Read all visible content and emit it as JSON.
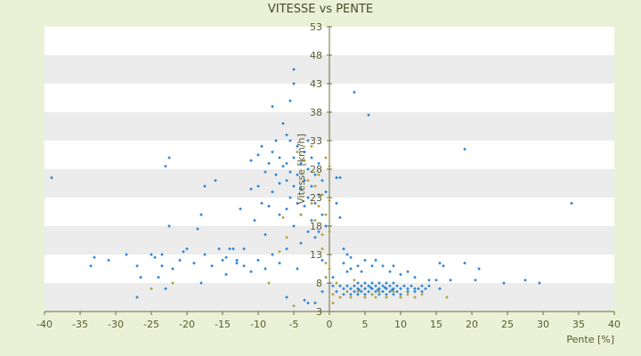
{
  "chart_data": {
    "type": "scatter",
    "title": "VITESSE vs PENTE",
    "xlabel": "Pente [%]",
    "ylabel": "Vitesse [km/h]",
    "xlim": [
      -40,
      40
    ],
    "ylim": [
      3,
      53
    ],
    "x_ticks": [
      -40,
      -35,
      -30,
      -25,
      -20,
      -15,
      -10,
      -5,
      0,
      5,
      10,
      15,
      20,
      25,
      30,
      35,
      40
    ],
    "y_ticks": [
      3,
      8,
      13,
      18,
      23,
      28,
      33,
      38,
      43,
      48,
      53
    ],
    "grid": "alternating horizontal bands",
    "legend": "none",
    "colors": {
      "primary": "#2e86d4",
      "secondary": "#b5a23a",
      "background": "#ebf1d6"
    },
    "series": [
      {
        "color": "#2e86d4",
        "points": [
          [
            -39,
            26.5
          ],
          [
            -33.5,
            11
          ],
          [
            -33,
            12.5
          ],
          [
            -31,
            12
          ],
          [
            -28.5,
            13
          ],
          [
            -27,
            11
          ],
          [
            -27,
            5.5
          ],
          [
            -26.5,
            9
          ],
          [
            -25,
            13
          ],
          [
            -24.5,
            12.5
          ],
          [
            -24,
            9
          ],
          [
            -23.5,
            11
          ],
          [
            -23.5,
            13
          ],
          [
            -23,
            28.5
          ],
          [
            -22.5,
            30
          ],
          [
            -22.5,
            18
          ],
          [
            -22,
            10.5
          ],
          [
            -21,
            12
          ],
          [
            -20.5,
            13.5
          ],
          [
            -20,
            14
          ],
          [
            -19,
            11.5
          ],
          [
            -18.5,
            17.5
          ],
          [
            -18,
            20
          ],
          [
            -18,
            8
          ],
          [
            -17.5,
            13
          ],
          [
            -17.5,
            25
          ],
          [
            -16.5,
            11
          ],
          [
            -16,
            26
          ],
          [
            -15.5,
            14
          ],
          [
            -15,
            12
          ],
          [
            -14.5,
            12.5
          ],
          [
            -14,
            14
          ],
          [
            -13.5,
            14
          ],
          [
            -13,
            12
          ],
          [
            -12.5,
            21
          ],
          [
            -12,
            14
          ],
          [
            -12,
            11
          ],
          [
            -11,
            29.5
          ],
          [
            -11,
            24.5
          ],
          [
            -10.5,
            19
          ],
          [
            -10,
            30.5
          ],
          [
            -10,
            25
          ],
          [
            -9.5,
            32
          ],
          [
            -9.5,
            22
          ],
          [
            -9,
            27.5
          ],
          [
            -9,
            16.5
          ],
          [
            -8.5,
            29
          ],
          [
            -8.5,
            21.5
          ],
          [
            -8,
            39
          ],
          [
            -8,
            31
          ],
          [
            -8,
            24
          ],
          [
            -7.5,
            33
          ],
          [
            -7.5,
            27
          ],
          [
            -7,
            30
          ],
          [
            -7,
            25.5
          ],
          [
            -7,
            20
          ],
          [
            -6.5,
            36
          ],
          [
            -6.5,
            28.5
          ],
          [
            -6,
            34
          ],
          [
            -6,
            29
          ],
          [
            -6,
            26
          ],
          [
            -6,
            21
          ],
          [
            -6,
            14
          ],
          [
            -5.5,
            40
          ],
          [
            -5.5,
            33
          ],
          [
            -5.5,
            27.5
          ],
          [
            -5.5,
            23
          ],
          [
            -5,
            45.5
          ],
          [
            -5,
            43
          ],
          [
            -5,
            30
          ],
          [
            -5,
            25
          ],
          [
            -5,
            18
          ],
          [
            -4.5,
            32
          ],
          [
            -4.5,
            27
          ],
          [
            -4.5,
            22
          ],
          [
            -4.5,
            10.5
          ],
          [
            -4,
            29
          ],
          [
            -4,
            24.5
          ],
          [
            -4,
            20
          ],
          [
            -4,
            15
          ],
          [
            -3.5,
            31
          ],
          [
            -3.5,
            26
          ],
          [
            -3.5,
            21.5
          ],
          [
            -3,
            33
          ],
          [
            -3,
            28
          ],
          [
            -3,
            23
          ],
          [
            -3,
            17
          ],
          [
            -2.5,
            30
          ],
          [
            -2.5,
            25
          ],
          [
            -2.5,
            19
          ],
          [
            -2,
            27
          ],
          [
            -2,
            22
          ],
          [
            -2,
            16
          ],
          [
            -1.5,
            29
          ],
          [
            -1.5,
            23.5
          ],
          [
            -1.5,
            17
          ],
          [
            -1,
            26
          ],
          [
            -1,
            20
          ],
          [
            -1,
            12
          ],
          [
            -1,
            6.5
          ],
          [
            -0.5,
            24
          ],
          [
            -0.5,
            18
          ],
          [
            -0.5,
            9
          ],
          [
            -3.5,
            5
          ],
          [
            -3,
            4.5
          ],
          [
            -2,
            4.5
          ],
          [
            -6,
            5.5
          ],
          [
            -7,
            11.5
          ],
          [
            -8,
            13
          ],
          [
            -9,
            10.5
          ],
          [
            -10,
            12
          ],
          [
            -11,
            10
          ],
          [
            -13,
            11.5
          ],
          [
            -14.5,
            9.5
          ],
          [
            1,
            26.5
          ],
          [
            1.5,
            26.5
          ],
          [
            1,
            22
          ],
          [
            1.5,
            19.5
          ],
          [
            2,
            14
          ],
          [
            2,
            11.5
          ],
          [
            2.5,
            13
          ],
          [
            2.5,
            10
          ],
          [
            3,
            12.5
          ],
          [
            3,
            10.5
          ],
          [
            3.5,
            41.5
          ],
          [
            4,
            11
          ],
          [
            4.5,
            10
          ],
          [
            5,
            12
          ],
          [
            5.5,
            37.5
          ],
          [
            6,
            11
          ],
          [
            6.5,
            12
          ],
          [
            7.5,
            11
          ],
          [
            8.5,
            10
          ],
          [
            9,
            11
          ],
          [
            10,
            9.5
          ],
          [
            11,
            10
          ],
          [
            12,
            9
          ],
          [
            14,
            8.5
          ],
          [
            15,
            8.5
          ],
          [
            15.5,
            11.5
          ],
          [
            16,
            11
          ],
          [
            17,
            8.5
          ],
          [
            19,
            31.5
          ],
          [
            19,
            11.5
          ],
          [
            20.5,
            8.5
          ],
          [
            21,
            10.5
          ],
          [
            24.5,
            8
          ],
          [
            27.5,
            8.5
          ],
          [
            29.5,
            8
          ],
          [
            34,
            22
          ],
          [
            15.5,
            7
          ],
          [
            13,
            7.5
          ],
          [
            -23,
            7
          ],
          [
            0.5,
            9
          ],
          [
            0.5,
            7.5
          ],
          [
            1,
            6.5
          ],
          [
            1.5,
            7.5
          ],
          [
            2,
            7
          ],
          [
            2,
            6
          ],
          [
            2.5,
            7.5
          ],
          [
            2.5,
            6.5
          ],
          [
            3,
            7
          ],
          [
            3,
            6
          ],
          [
            3.5,
            7.5
          ],
          [
            3.5,
            6.5
          ],
          [
            4,
            8
          ],
          [
            4,
            7
          ],
          [
            4,
            6
          ],
          [
            4.5,
            7.5
          ],
          [
            4.5,
            6.5
          ],
          [
            5,
            8
          ],
          [
            5,
            7
          ],
          [
            5,
            6
          ],
          [
            5.5,
            7.5
          ],
          [
            5.5,
            6.5
          ],
          [
            6,
            8
          ],
          [
            6,
            7
          ],
          [
            6,
            6
          ],
          [
            6.5,
            7.5
          ],
          [
            6.5,
            6.5
          ],
          [
            7,
            8
          ],
          [
            7,
            7
          ],
          [
            7,
            6
          ],
          [
            7.5,
            7.5
          ],
          [
            7.5,
            6.5
          ],
          [
            8,
            8
          ],
          [
            8,
            7
          ],
          [
            8,
            6
          ],
          [
            8.5,
            7.5
          ],
          [
            8.5,
            6.5
          ],
          [
            9,
            8
          ],
          [
            9,
            7
          ],
          [
            9,
            6
          ],
          [
            9.5,
            7.5
          ],
          [
            9.5,
            6.5
          ],
          [
            10,
            7
          ],
          [
            10,
            6
          ],
          [
            10.5,
            7.5
          ],
          [
            11,
            7
          ],
          [
            11,
            6.5
          ],
          [
            11.5,
            7.5
          ],
          [
            12,
            7
          ],
          [
            12,
            6.5
          ],
          [
            12.5,
            7
          ],
          [
            13,
            6.5
          ],
          [
            13.5,
            7
          ],
          [
            14,
            7.5
          ],
          [
            4.2,
            6.8
          ],
          [
            5.8,
            7.2
          ],
          [
            6.8,
            6.8
          ],
          [
            7.8,
            7.2
          ],
          [
            8.8,
            6.8
          ]
        ]
      },
      {
        "color": "#b5a23a",
        "points": [
          [
            -25,
            7
          ],
          [
            -22,
            8
          ],
          [
            -8.5,
            8
          ],
          [
            -6.5,
            19.5
          ],
          [
            -5,
            4
          ],
          [
            -4.5,
            31
          ],
          [
            -4,
            20
          ],
          [
            -3.5,
            29.5
          ],
          [
            -3,
            26
          ],
          [
            -2.5,
            22
          ],
          [
            -2.5,
            32
          ],
          [
            -2,
            25
          ],
          [
            -2,
            19
          ],
          [
            -1.5,
            27
          ],
          [
            -1.5,
            21.5
          ],
          [
            -1,
            23.5
          ],
          [
            -1,
            16.5
          ],
          [
            -1,
            14
          ],
          [
            -0.5,
            30
          ],
          [
            -0.5,
            20
          ],
          [
            -0.5,
            11.5
          ],
          [
            -0.5,
            9
          ],
          [
            0,
            28.5
          ],
          [
            0,
            22.5
          ],
          [
            0,
            17
          ],
          [
            0,
            10.5
          ],
          [
            0.5,
            6
          ],
          [
            0.5,
            4.5
          ],
          [
            1,
            8
          ],
          [
            1.5,
            5.5
          ],
          [
            2.5,
            6.5
          ],
          [
            3,
            5.5
          ],
          [
            3.5,
            8.5
          ],
          [
            4,
            6.5
          ],
          [
            5,
            5.5
          ],
          [
            6,
            6
          ],
          [
            6.5,
            5.5
          ],
          [
            7,
            6.5
          ],
          [
            8,
            5.5
          ],
          [
            9,
            6.5
          ],
          [
            10,
            5.5
          ],
          [
            11,
            6
          ],
          [
            12,
            5.5
          ],
          [
            13,
            6
          ],
          [
            16.5,
            5.5
          ],
          [
            -6,
            16
          ],
          [
            -7,
            13.5
          ]
        ]
      }
    ]
  }
}
